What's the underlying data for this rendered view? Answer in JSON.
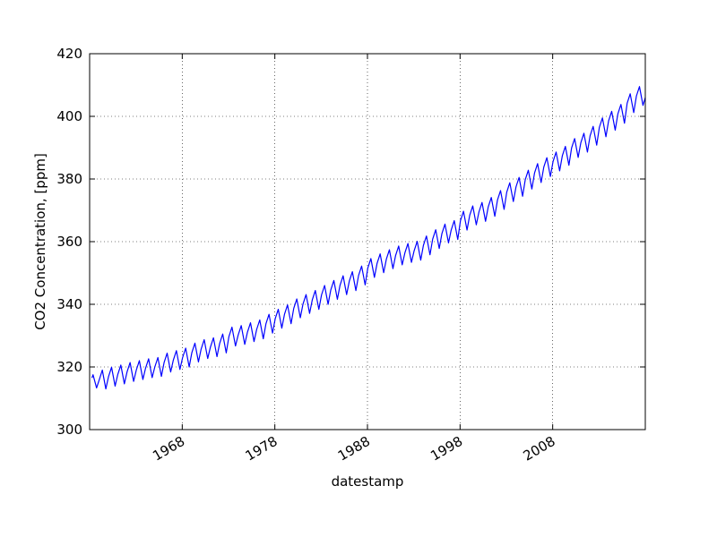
{
  "chart_data": {
    "type": "line",
    "xlabel": "datestamp",
    "ylabel": "CO2 Concentration, [ppm]",
    "color": "#0000ff",
    "grid": true,
    "xlim": [
      1958,
      2018
    ],
    "ylim": [
      300,
      420
    ],
    "xticks": [
      1968,
      1978,
      1988,
      1998,
      2008
    ],
    "yticks": [
      300,
      320,
      340,
      360,
      380,
      400,
      420
    ],
    "x": [
      1958.25,
      1958.37,
      1958.75,
      1959.04,
      1959.37,
      1959.75,
      1960.04,
      1960.37,
      1960.75,
      1961.04,
      1961.37,
      1961.75,
      1962.04,
      1962.37,
      1962.75,
      1963.04,
      1963.37,
      1963.75,
      1964.04,
      1964.37,
      1964.75,
      1965.04,
      1965.37,
      1965.75,
      1966.04,
      1966.37,
      1966.75,
      1967.04,
      1967.37,
      1967.75,
      1968.04,
      1968.37,
      1968.75,
      1969.04,
      1969.37,
      1969.75,
      1970.04,
      1970.37,
      1970.75,
      1971.04,
      1971.37,
      1971.75,
      1972.04,
      1972.37,
      1972.75,
      1973.04,
      1973.37,
      1973.75,
      1974.04,
      1974.37,
      1974.75,
      1975.04,
      1975.37,
      1975.75,
      1976.04,
      1976.37,
      1976.75,
      1977.04,
      1977.37,
      1977.75,
      1978.04,
      1978.37,
      1978.75,
      1979.04,
      1979.37,
      1979.75,
      1980.04,
      1980.37,
      1980.75,
      1981.04,
      1981.37,
      1981.75,
      1982.04,
      1982.37,
      1982.75,
      1983.04,
      1983.37,
      1983.75,
      1984.04,
      1984.37,
      1984.75,
      1985.04,
      1985.37,
      1985.75,
      1986.04,
      1986.37,
      1986.75,
      1987.04,
      1987.37,
      1987.75,
      1988.04,
      1988.37,
      1988.75,
      1989.04,
      1989.37,
      1989.75,
      1990.04,
      1990.37,
      1990.75,
      1991.04,
      1991.37,
      1991.75,
      1992.04,
      1992.37,
      1992.75,
      1993.04,
      1993.37,
      1993.75,
      1994.04,
      1994.37,
      1994.75,
      1995.04,
      1995.37,
      1995.75,
      1996.04,
      1996.37,
      1996.75,
      1997.04,
      1997.37,
      1997.75,
      1998.04,
      1998.37,
      1998.75,
      1999.04,
      1999.37,
      1999.75,
      2000.04,
      2000.37,
      2000.75,
      2001.04,
      2001.37,
      2001.75,
      2002.04,
      2002.37,
      2002.75,
      2003.04,
      2003.37,
      2003.75,
      2004.04,
      2004.37,
      2004.75,
      2005.04,
      2005.37,
      2005.75,
      2006.04,
      2006.37,
      2006.75,
      2007.04,
      2007.37,
      2007.75,
      2008.04,
      2008.37,
      2008.75,
      2009.04,
      2009.37,
      2009.75,
      2010.04,
      2010.37,
      2010.75,
      2011.04,
      2011.37,
      2011.75,
      2012.04,
      2012.37,
      2012.75,
      2013.04,
      2013.37,
      2013.75,
      2014.04,
      2014.37,
      2014.75,
      2015.04,
      2015.37,
      2015.75,
      2016.04,
      2016.37,
      2016.75,
      2017.04,
      2017.37,
      2017.75,
      2018.0
    ],
    "values": [
      316.5,
      317.5,
      313.3,
      315.9,
      319.0,
      313.0,
      316.9,
      319.9,
      313.9,
      317.6,
      320.6,
      314.6,
      318.4,
      321.4,
      315.4,
      319.0,
      322.0,
      316.0,
      319.6,
      322.6,
      316.6,
      320.0,
      323.0,
      317.0,
      321.4,
      324.4,
      318.4,
      322.2,
      325.2,
      319.2,
      323.0,
      326.0,
      320.0,
      324.6,
      327.6,
      321.6,
      325.7,
      328.7,
      322.7,
      326.3,
      329.3,
      323.3,
      327.5,
      330.5,
      324.5,
      329.7,
      332.7,
      326.7,
      330.2,
      333.2,
      327.2,
      331.1,
      334.1,
      328.1,
      332.0,
      335.0,
      329.0,
      333.8,
      336.8,
      330.8,
      335.4,
      338.4,
      332.4,
      336.8,
      339.8,
      333.8,
      338.7,
      341.7,
      335.7,
      340.1,
      343.1,
      337.1,
      341.4,
      344.4,
      338.4,
      343.0,
      346.0,
      340.0,
      344.6,
      347.6,
      341.6,
      346.1,
      349.1,
      343.1,
      347.4,
      350.4,
      344.4,
      349.2,
      352.2,
      346.2,
      351.6,
      354.6,
      348.6,
      353.1,
      356.1,
      350.1,
      354.4,
      357.4,
      351.4,
      355.6,
      358.6,
      352.6,
      356.4,
      359.4,
      353.4,
      357.1,
      360.1,
      354.1,
      358.8,
      361.8,
      355.8,
      360.8,
      363.8,
      357.8,
      362.6,
      365.6,
      359.6,
      363.7,
      366.7,
      360.7,
      366.7,
      369.7,
      363.7,
      368.4,
      371.4,
      365.4,
      369.5,
      372.5,
      366.5,
      371.1,
      374.1,
      368.1,
      373.3,
      376.3,
      370.3,
      375.8,
      378.8,
      372.8,
      377.5,
      380.5,
      374.5,
      379.8,
      382.8,
      376.8,
      381.9,
      384.9,
      378.9,
      383.8,
      386.8,
      380.8,
      385.6,
      388.6,
      382.6,
      387.4,
      390.4,
      384.4,
      389.9,
      392.9,
      386.9,
      391.6,
      394.6,
      388.6,
      393.8,
      396.8,
      390.8,
      396.5,
      399.5,
      393.5,
      398.6,
      401.6,
      395.6,
      400.8,
      403.8,
      397.8,
      404.2,
      407.2,
      401.2,
      406.5,
      409.5,
      403.5,
      406.0
    ]
  }
}
